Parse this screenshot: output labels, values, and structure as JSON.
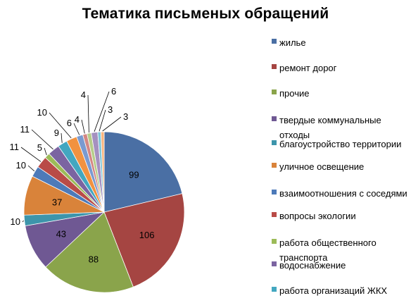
{
  "chart_data": {
    "type": "pie",
    "title": "Тематика письменых обращений",
    "start_angle_deg": 0,
    "direction": "clockwise",
    "legend_position": "right",
    "slices": [
      {
        "label": "жилье",
        "value": 99,
        "color": "#4a6fa4",
        "label_style": "inside"
      },
      {
        "label": "ремонт дорог",
        "value": 106,
        "color": "#a54542",
        "label_style": "inside"
      },
      {
        "label": "прочие",
        "value": 88,
        "color": "#8aa44b",
        "label_style": "inside"
      },
      {
        "label": "твердые коммунальные отходы",
        "value": 43,
        "color": "#6f5893",
        "label_style": "inside"
      },
      {
        "label": "благоустройство территории",
        "value": 10,
        "color": "#3d95ab",
        "label_style": "leader"
      },
      {
        "label": "уличное освещение",
        "value": 37,
        "color": "#d9833a",
        "label_style": "inside"
      },
      {
        "label": "взаимоотношения  с соседями",
        "value": 10,
        "color": "#4d7ab9",
        "label_style": "leader"
      },
      {
        "label": "вопросы экологии",
        "value": 11,
        "color": "#b94b47",
        "label_style": "leader"
      },
      {
        "label": "работа общественного транспорта",
        "value": 5,
        "color": "#9cbb58",
        "label_style": "leader"
      },
      {
        "label": "водоснабжение",
        "value": 11,
        "color": "#7b64a1",
        "label_style": "leader"
      },
      {
        "label": "работа организаций ЖКХ",
        "value": 9,
        "color": "#43a7c0",
        "label_style": "leader"
      },
      {
        "label": "",
        "value": 10,
        "color": "#f19240",
        "label_style": "leader"
      },
      {
        "label": "",
        "value": 6,
        "color": "#7a9ad0",
        "label_style": "leader"
      },
      {
        "label": "",
        "value": 4,
        "color": "#d48784",
        "label_style": "leader"
      },
      {
        "label": "",
        "value": 4,
        "color": "#b6cd8a",
        "label_style": "leader"
      },
      {
        "label": "",
        "value": 6,
        "color": "#a591c0",
        "label_style": "leader"
      },
      {
        "label": "",
        "value": 3,
        "color": "#7fc6d9",
        "label_style": "leader"
      },
      {
        "label": "",
        "value": 3,
        "color": "#f9b57f",
        "label_style": "leader"
      }
    ]
  }
}
